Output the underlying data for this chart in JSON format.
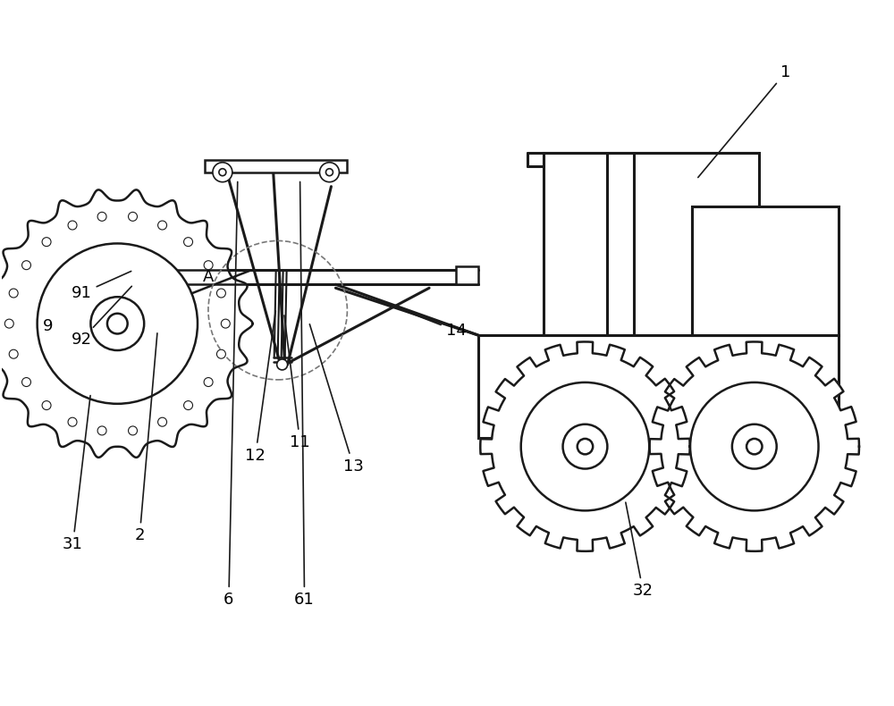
{
  "bg_color": "#ffffff",
  "line_color": "#1a1a1a",
  "lw": 1.8,
  "lw_thick": 2.2,
  "lw_thin": 1.2,
  "fs": 13,
  "fig_w": 10.0,
  "fig_h": 7.9
}
